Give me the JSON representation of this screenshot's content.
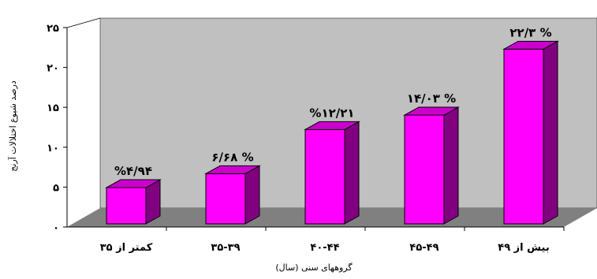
{
  "chart_data": {
    "type": "bar",
    "title": "",
    "xlabel": "گروههای سنی (سال)",
    "ylabel": "درصد شیوع اختلالات آرنج",
    "ylim": [
      0,
      25
    ],
    "yticks": [
      0,
      5,
      10,
      15,
      20,
      25
    ],
    "ytick_labels": [
      "۰",
      "۵",
      "۱۰",
      "۱۵",
      "۲۰",
      "۲۵"
    ],
    "categories": [
      "کمتر از ۳۵",
      "۳۵-۳۹",
      "۴۰-۴۴",
      "۴۵-۴۹",
      "بیش از ۴۹"
    ],
    "values": [
      4.94,
      6.68,
      12.21,
      14.03,
      22.3
    ],
    "data_labels": [
      "%۴/۹۴",
      "% ۶/۶۸",
      "%۱۲/۲۱",
      "% ۱۴/۰۳",
      "% ۲۲/۳"
    ],
    "grid": false,
    "legend": "none",
    "colors": {
      "bar_front": "#ff00ff",
      "bar_side": "#800080",
      "bar_top": "#cc00cc",
      "floor": "#808080",
      "wall": "#c0c0c0",
      "background": "#ffffff"
    }
  }
}
